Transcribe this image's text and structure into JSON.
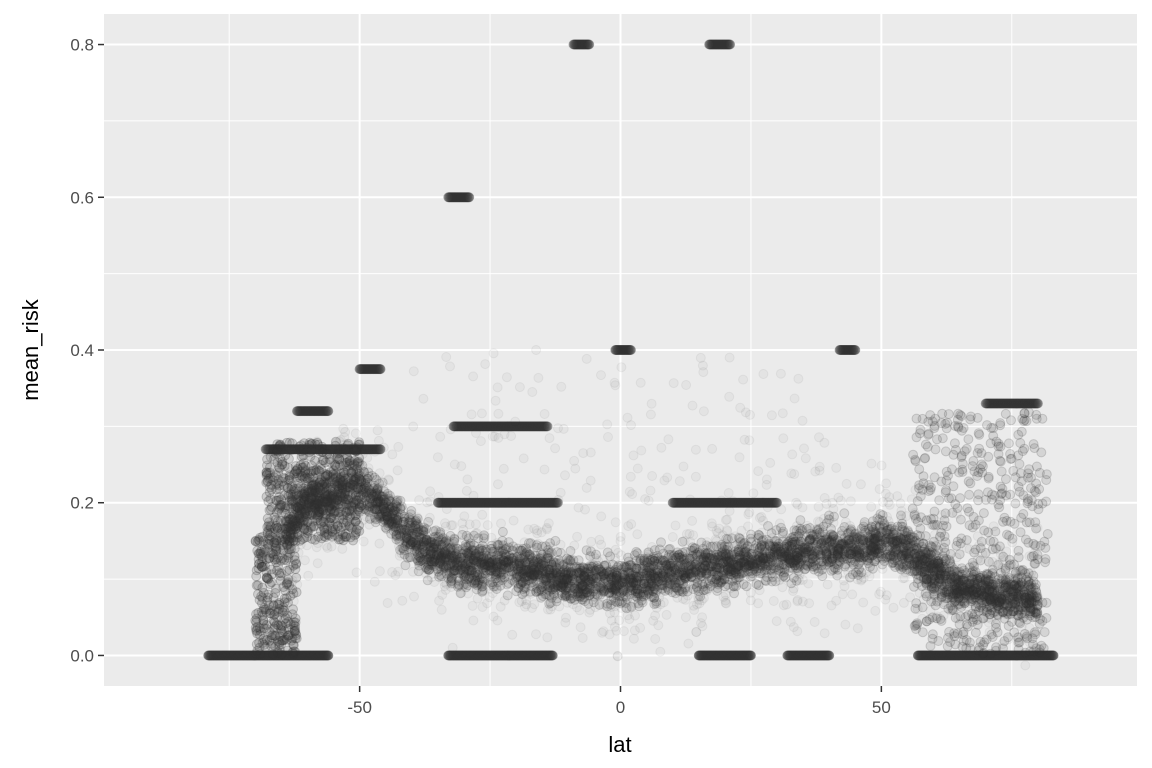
{
  "chart_data": {
    "type": "scatter",
    "title": "",
    "xlabel": "lat",
    "ylabel": "mean_risk",
    "xlim": [
      -99,
      99
    ],
    "ylim": [
      -0.04,
      0.84
    ],
    "x_ticks": [
      -50,
      0,
      50
    ],
    "x_tick_labels": [
      "-50",
      "0",
      "50"
    ],
    "y_ticks": [
      0.0,
      0.2,
      0.4,
      0.6,
      0.8
    ],
    "y_tick_labels": [
      "0.0",
      "0.2",
      "0.4",
      "0.6",
      "0.8"
    ],
    "grid": true,
    "legend": "none",
    "point_color": "#333333",
    "point_alpha": 0.04,
    "panel_background": "#ebebeb",
    "grid_color": "#ffffff",
    "trend": {
      "lat": [
        -64,
        -60,
        -55,
        -50,
        -45,
        -40,
        -35,
        -30,
        -25,
        -20,
        -15,
        -10,
        -5,
        0,
        5,
        10,
        15,
        20,
        25,
        30,
        35,
        40,
        45,
        50,
        55,
        60,
        65,
        70,
        75,
        80
      ],
      "mean_risk": [
        0.16,
        0.2,
        0.21,
        0.22,
        0.19,
        0.15,
        0.13,
        0.12,
        0.12,
        0.115,
        0.11,
        0.1,
        0.1,
        0.095,
        0.1,
        0.11,
        0.115,
        0.12,
        0.125,
        0.13,
        0.135,
        0.14,
        0.14,
        0.15,
        0.14,
        0.11,
        0.09,
        0.08,
        0.08,
        0.07
      ]
    },
    "zero_band": [
      [
        -79,
        -56
      ],
      [
        -33,
        -13
      ],
      [
        15,
        25
      ],
      [
        32,
        40
      ],
      [
        57,
        83
      ]
    ],
    "high_clusters": [
      {
        "x_range": [
          -33,
          -29
        ],
        "y": 0.6
      },
      {
        "x_range": [
          -9,
          -6
        ],
        "y": 0.8
      },
      {
        "x_range": [
          17,
          21
        ],
        "y": 0.8
      },
      {
        "x_range": [
          -1,
          2
        ],
        "y": 0.4
      },
      {
        "x_range": [
          42,
          45
        ],
        "y": 0.4
      },
      {
        "x_range": [
          -50,
          -46
        ],
        "y": 0.375
      },
      {
        "x_range": [
          70,
          80
        ],
        "y": 0.33
      },
      {
        "x_range": [
          -62,
          -56
        ],
        "y": 0.32
      },
      {
        "x_range": [
          -35,
          -12
        ],
        "y": 0.2
      },
      {
        "x_range": [
          10,
          30
        ],
        "y": 0.2
      },
      {
        "x_range": [
          -32,
          -14
        ],
        "y": 0.3
      },
      {
        "x_range": [
          -68,
          -46
        ],
        "y": 0.27
      }
    ]
  }
}
